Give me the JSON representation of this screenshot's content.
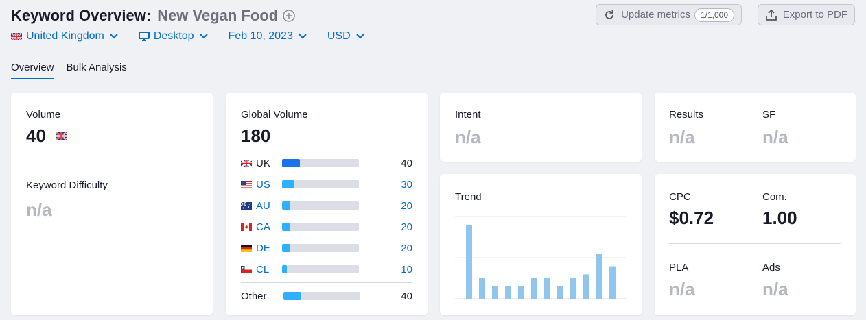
{
  "header": {
    "title_prefix": "Keyword Overview:",
    "keyword": "New Vegan Food",
    "update_label": "Update metrics",
    "update_quota": "1/1,000",
    "export_label": "Export to PDF"
  },
  "filters": {
    "database": "United Kingdom",
    "device": "Desktop",
    "date": "Feb 10, 2023",
    "currency": "USD"
  },
  "tabs": [
    {
      "label": "Overview",
      "active": true
    },
    {
      "label": "Bulk Analysis",
      "active": false
    }
  ],
  "volume": {
    "label": "Volume",
    "value": "40"
  },
  "keyword_difficulty": {
    "label": "Keyword Difficulty",
    "value": "n/a"
  },
  "global_volume": {
    "label": "Global Volume",
    "value": "180",
    "countries": [
      {
        "code": "UK",
        "value": "40",
        "share": 0.23,
        "link": false
      },
      {
        "code": "US",
        "value": "30",
        "share": 0.16,
        "link": true
      },
      {
        "code": "AU",
        "value": "20",
        "share": 0.11,
        "link": true
      },
      {
        "code": "CA",
        "value": "20",
        "share": 0.11,
        "link": true
      },
      {
        "code": "DE",
        "value": "20",
        "share": 0.11,
        "link": true
      },
      {
        "code": "CL",
        "value": "10",
        "share": 0.06,
        "link": true
      }
    ],
    "other": {
      "label": "Other",
      "value": "40",
      "share": 0.23
    }
  },
  "intent": {
    "label": "Intent",
    "value": "n/a"
  },
  "results": {
    "label": "Results",
    "value": "n/a"
  },
  "sf": {
    "label": "SF",
    "value": "n/a"
  },
  "trend": {
    "label": "Trend",
    "values": [
      1.0,
      0.28,
      0.17,
      0.17,
      0.17,
      0.28,
      0.28,
      0.17,
      0.28,
      0.33,
      0.61,
      0.44
    ]
  },
  "cpc": {
    "label": "CPC",
    "value": "$0.72"
  },
  "com": {
    "label": "Com.",
    "value": "1.00"
  },
  "pla": {
    "label": "PLA",
    "value": "n/a"
  },
  "ads": {
    "label": "Ads",
    "value": "n/a"
  },
  "colors": {
    "link": "#006dca",
    "bar_primary": "#1a73e8",
    "bar_secondary": "#2db0ff",
    "trend_bar": "#90c5ee",
    "muted": "#b6b8c0"
  }
}
